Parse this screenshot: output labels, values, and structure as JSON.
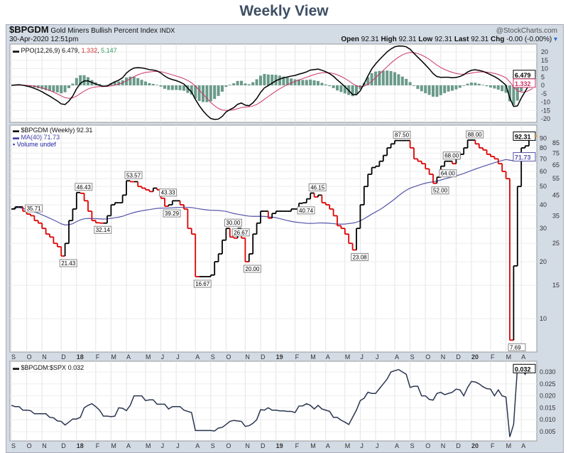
{
  "title": "Weekly View",
  "header": {
    "symbol": "$BPGDM",
    "name": "Gold Miners Bullish Percent Index",
    "exchange": "INDX",
    "date": "30-Apr-2020 12:51pm",
    "credit": "@StockCharts.com",
    "open_label": "Open",
    "open": "92.31",
    "high_label": "High",
    "high": "92.31",
    "low_label": "Low",
    "low": "92.31",
    "last_label": "Last",
    "last": "92.31",
    "chg_label": "Chg",
    "chg": "-0.00 (-0.00%)"
  },
  "ppo": {
    "label": "PPO(12,26,9)",
    "v1": "6.479",
    "v2": "1.332",
    "v3": "5.147",
    "ticks": [
      20,
      15,
      10,
      5,
      0,
      -5,
      -10,
      -15,
      -20
    ],
    "badge1": "6.479",
    "badge2": "1.332"
  },
  "main": {
    "label": "$BPGDM (Weekly)",
    "value": "92.31",
    "ma_label": "MA(40)",
    "ma_value": "71.73",
    "vol_label": "Volume undef",
    "ticks": [
      10,
      15,
      20,
      25,
      30,
      35,
      40,
      45,
      50,
      55,
      60,
      65,
      70,
      75,
      80,
      85,
      90
    ],
    "badge_last": "92.31",
    "badge_ma": "71.73"
  },
  "ratio": {
    "label": "$BPGDM:$SPX",
    "value": "0.032",
    "ticks": [
      "0.005",
      "0.010",
      "0.015",
      "0.020",
      "0.025",
      "0.030"
    ],
    "badge": "0.032"
  },
  "chart_data": {
    "type": "line",
    "months": [
      [
        "S",
        0
      ],
      [
        "O",
        4
      ],
      [
        "N",
        8
      ],
      [
        "D",
        13
      ],
      [
        "18",
        17
      ],
      [
        "F",
        22
      ],
      [
        "M",
        26
      ],
      [
        "A",
        30
      ],
      [
        "M",
        35
      ],
      [
        "J",
        39
      ],
      [
        "J",
        43
      ],
      [
        "A",
        48
      ],
      [
        "S",
        52
      ],
      [
        "O",
        56
      ],
      [
        "N",
        61
      ],
      [
        "D",
        65
      ],
      [
        "19",
        69
      ],
      [
        "F",
        74
      ],
      [
        "M",
        78
      ],
      [
        "A",
        82
      ],
      [
        "M",
        87
      ],
      [
        "J",
        91
      ],
      [
        "J",
        95
      ],
      [
        "A",
        100
      ],
      [
        "S",
        104
      ],
      [
        "O",
        108
      ],
      [
        "N",
        112
      ],
      [
        "D",
        116
      ],
      [
        "20",
        120
      ],
      [
        "F",
        125
      ],
      [
        "M",
        129
      ],
      [
        "A",
        133
      ]
    ],
    "bpi": [
      38,
      39,
      39,
      37,
      35.71,
      35,
      33,
      32,
      30,
      28,
      27,
      25,
      24,
      21.43,
      25,
      33,
      38,
      46.43,
      46,
      42,
      37,
      33,
      32.14,
      32,
      32,
      35,
      40,
      41,
      41,
      45,
      53.57,
      53,
      53,
      50,
      49,
      48,
      47,
      49,
      48,
      43.33,
      39.29,
      40,
      42,
      42,
      40,
      38,
      30,
      28,
      16.67,
      16.67,
      16.67,
      16.67,
      17,
      20,
      22,
      26,
      30,
      27,
      26.67,
      30,
      26.67,
      20,
      22,
      28,
      32,
      37,
      37,
      34,
      36,
      37,
      37,
      37,
      37,
      38,
      38,
      40.74,
      41,
      43,
      46.15,
      44,
      45,
      41,
      40,
      38,
      35,
      31,
      30,
      28,
      25,
      23.08,
      30,
      40,
      50,
      58,
      63,
      64,
      68,
      73,
      80,
      84,
      87.5,
      87.5,
      87.5,
      87.5,
      80,
      70,
      68,
      66,
      62,
      58,
      52,
      56,
      64,
      68,
      68,
      66,
      70,
      74,
      80,
      88,
      88,
      84,
      80,
      78,
      74,
      72,
      70,
      66,
      60,
      55,
      7.69,
      19,
      50,
      80,
      82,
      90,
      92.31
    ],
    "ratio": [
      0.016,
      0.0155,
      0.0155,
      0.014,
      0.014,
      0.0138,
      0.0125,
      0.0125,
      0.0125,
      0.0125,
      0.011,
      0.0108,
      0.0095,
      0.0093,
      0.0078,
      0.009,
      0.0103,
      0.0103,
      0.011,
      0.015,
      0.016,
      0.0167,
      0.0155,
      0.014,
      0.0115,
      0.0115,
      0.0113,
      0.0115,
      0.015,
      0.0148,
      0.0138,
      0.016,
      0.02,
      0.02,
      0.02,
      0.018,
      0.0183,
      0.0183,
      0.0165,
      0.0165,
      0.0165,
      0.0145,
      0.0155,
      0.0155,
      0.0155,
      0.014,
      0.0135,
      0.013,
      0.0055,
      0.0055,
      0.0055,
      0.0055,
      0.0055,
      0.0053,
      0.0065,
      0.0068,
      0.008,
      0.0093,
      0.0097,
      0.0095,
      0.0093,
      0.0072,
      0.0075,
      0.0085,
      0.01,
      0.0142,
      0.014,
      0.015,
      0.014,
      0.014,
      0.0137,
      0.0137,
      0.0135,
      0.0135,
      0.013,
      0.0157,
      0.0158,
      0.0167,
      0.016,
      0.0145,
      0.016,
      0.0145,
      0.014,
      0.0135,
      0.011,
      0.011,
      0.0098,
      0.009,
      0.008,
      0.011,
      0.014,
      0.018,
      0.019,
      0.0215,
      0.021,
      0.021,
      0.023,
      0.025,
      0.027,
      0.03,
      0.0305,
      0.031,
      0.03,
      0.029,
      0.0235,
      0.024,
      0.024,
      0.02,
      0.02,
      0.0185,
      0.0182,
      0.021,
      0.0215,
      0.0205,
      0.021,
      0.0215,
      0.0228,
      0.0225,
      0.02,
      0.0235,
      0.026,
      0.0258,
      0.025,
      0.0238,
      0.023,
      0.0228,
      0.02,
      0.0225,
      0.02,
      0.0195,
      0.0028,
      0.008,
      0.032,
      0.0325,
      0.029,
      0.032,
      0.032
    ],
    "annotations": [
      [
        4,
        "35.71",
        "above"
      ],
      [
        13,
        "21.43",
        "below"
      ],
      [
        17,
        "46.43",
        "above"
      ],
      [
        22,
        "32.14",
        "below"
      ],
      [
        30,
        "53.57",
        "above"
      ],
      [
        40,
        "39.29",
        "below"
      ],
      [
        39,
        "43.33",
        "above"
      ],
      [
        48,
        "16.67",
        "below"
      ],
      [
        56,
        "30.00",
        "above"
      ],
      [
        58,
        "26.67",
        "above"
      ],
      [
        61,
        "20.00",
        "below"
      ],
      [
        75,
        "40.74",
        "below"
      ],
      [
        78,
        "46.15",
        "above"
      ],
      [
        89,
        "23.08",
        "below"
      ],
      [
        100,
        "87.50",
        "above"
      ],
      [
        110,
        "52.00",
        "below"
      ],
      [
        113,
        "68.00",
        "above"
      ],
      [
        112,
        "64.00",
        "below"
      ],
      [
        119,
        "88.00",
        "above"
      ],
      [
        130,
        "7.69",
        "below"
      ]
    ],
    "ma_period": 40,
    "scale": "log"
  }
}
